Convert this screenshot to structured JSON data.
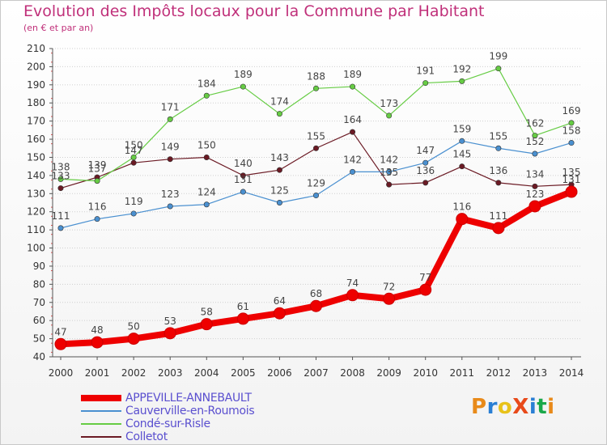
{
  "title": "Evolution des Impôts locaux pour la Commune par Habitant",
  "subtitle": "(en € et par an)",
  "logo": {
    "text": "ProXiti",
    "colors": [
      "#e88a1a",
      "#2a7fd4",
      "#e8c21a",
      "#e84a1a",
      "#2a7fd4",
      "#1aa84a",
      "#e88a1a"
    ]
  },
  "colors": {
    "title": "#c0307a",
    "legend_text": "#5a4fcf",
    "axis_text": "#333333",
    "grid": "#cfcfcf"
  },
  "chart_data": {
    "type": "line",
    "title": "Evolution des Impôts locaux pour la Commune par Habitant",
    "subtitle": "(en € et par an)",
    "x": [
      2000,
      2001,
      2002,
      2003,
      2004,
      2005,
      2006,
      2007,
      2008,
      2009,
      2010,
      2011,
      2012,
      2013,
      2014
    ],
    "ylim": [
      40,
      210
    ],
    "yticks": [
      40,
      50,
      60,
      70,
      80,
      90,
      100,
      110,
      120,
      130,
      140,
      150,
      160,
      170,
      180,
      190,
      200,
      210
    ],
    "grid": "horizontal",
    "legend_position": "bottom-left",
    "series": [
      {
        "name": "APPEVILLE-ANNEBAULT",
        "color": "#ee0000",
        "values": [
          47,
          48,
          50,
          53,
          58,
          61,
          64,
          68,
          74,
          72,
          77,
          116,
          111,
          123,
          131
        ]
      },
      {
        "name": "Cauverville-en-Roumois",
        "color": "#4a90d0",
        "values": [
          111,
          116,
          119,
          123,
          124,
          131,
          125,
          129,
          142,
          142,
          147,
          159,
          155,
          152,
          158
        ]
      },
      {
        "name": "Condé-sur-Risle",
        "color": "#66cc44",
        "values": [
          138,
          137,
          150,
          171,
          184,
          189,
          174,
          188,
          189,
          173,
          191,
          192,
          199,
          162,
          169
        ]
      },
      {
        "name": "Colletot",
        "color": "#6b1a24",
        "values": [
          133,
          139,
          147,
          149,
          150,
          140,
          143,
          155,
          164,
          135,
          136,
          145,
          136,
          134,
          135
        ]
      }
    ]
  }
}
